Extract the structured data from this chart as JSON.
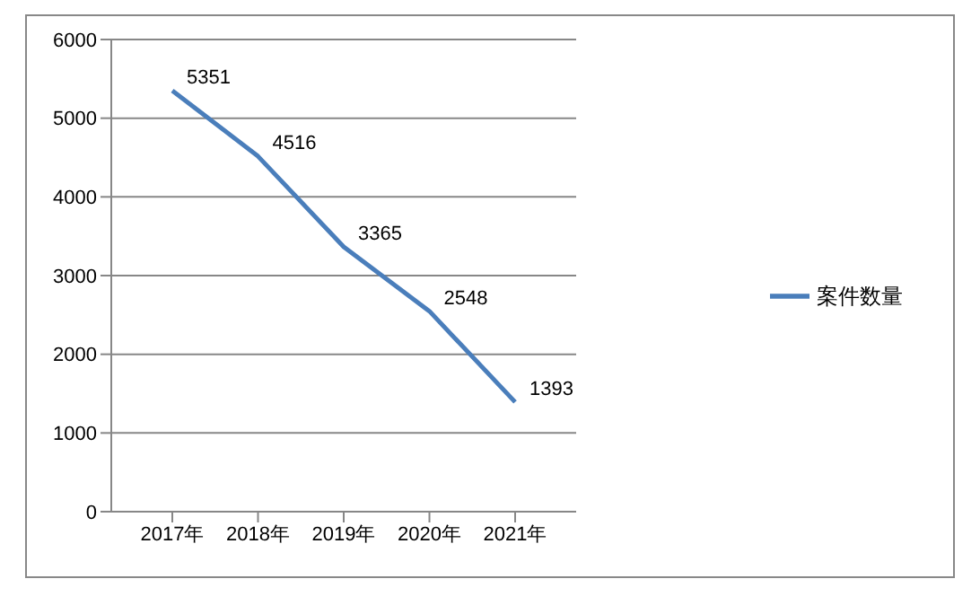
{
  "chart_data": {
    "type": "line",
    "categories": [
      "2017年",
      "2018年",
      "2019年",
      "2020年",
      "2021年"
    ],
    "series": [
      {
        "name": "案件数量",
        "color": "#4a7ebb",
        "values": [
          5351,
          4516,
          3365,
          2548,
          1393
        ]
      }
    ],
    "ylim": [
      0,
      6000
    ],
    "yticks": [
      0,
      1000,
      2000,
      3000,
      4000,
      5000,
      6000
    ],
    "grid": "y",
    "legend": "right",
    "marker": "none",
    "line_style": "solid",
    "data_labels": true
  }
}
